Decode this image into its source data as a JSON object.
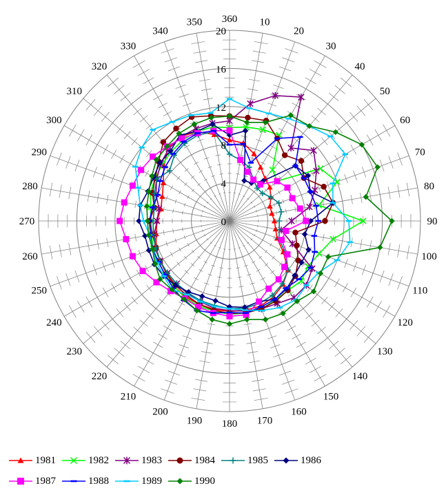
{
  "chart_data": {
    "type": "radar",
    "theta_ticks": [
      0,
      10,
      20,
      30,
      40,
      50,
      60,
      70,
      80,
      90,
      100,
      110,
      120,
      130,
      140,
      150,
      160,
      170,
      180,
      190,
      200,
      210,
      220,
      230,
      240,
      250,
      260,
      270,
      280,
      290,
      300,
      310,
      320,
      330,
      340,
      350
    ],
    "theta_labels": [
      "360",
      "10",
      "20",
      "30",
      "40",
      "50",
      "60",
      "70",
      "80",
      "90",
      "100",
      "110",
      "120",
      "130",
      "140",
      "150",
      "160",
      "170",
      "180",
      "190",
      "200",
      "210",
      "220",
      "230",
      "240",
      "250",
      "260",
      "270",
      "280",
      "290",
      "300",
      "310",
      "320",
      "330",
      "340",
      "350"
    ],
    "r_ticks": [
      0,
      4,
      8,
      12,
      16,
      20
    ],
    "r_labels": [
      "0",
      "4",
      "8",
      "12",
      "16",
      "20"
    ],
    "rlim": [
      0,
      20
    ],
    "grid": true,
    "legend_position": "bottom",
    "series": [
      {
        "name": "1981",
        "color": "#ff0000",
        "marker": "triangle",
        "values": [
          8.5,
          8.3,
          7.5,
          6.5,
          5.8,
          5.5,
          5.0,
          4.5,
          4.5,
          4.7,
          4.9,
          5.3,
          6.5,
          8.0,
          8.7,
          9.2,
          9.5,
          9.5,
          9.5,
          9.4,
          9.3,
          9.2,
          9.0,
          8.6,
          8.4,
          8.2,
          7.8,
          7.6,
          7.3,
          7.5,
          8.0,
          9.0,
          10.0,
          10.2,
          10.0,
          9.2
        ]
      },
      {
        "name": "1982",
        "color": "#00ff00",
        "marker": "x",
        "values": [
          9.8,
          10.0,
          10.2,
          10.4,
          7.0,
          6.5,
          11.0,
          12.0,
          9.5,
          14.0,
          11.0,
          10.0,
          9.5,
          9.8,
          9.5,
          9.6,
          9.8,
          9.8,
          9.8,
          9.6,
          9.5,
          9.3,
          9.0,
          8.8,
          8.6,
          8.5,
          8.3,
          8.2,
          8.4,
          8.8,
          9.0,
          9.2,
          9.5,
          9.8,
          10.0,
          10.0
        ]
      },
      {
        "name": "1983",
        "color": "#800080",
        "marker": "asterisk",
        "values": [
          10.5,
          12.5,
          14.0,
          15.0,
          10.0,
          11.5,
          10.5,
          9.5,
          8.5,
          6.5,
          5.5,
          7.0,
          10.0,
          10.5,
          10.5,
          10.0,
          9.8,
          9.6,
          9.4,
          9.3,
          9.0,
          8.8,
          8.6,
          8.5,
          8.4,
          8.3,
          8.0,
          7.6,
          7.5,
          8.2,
          8.8,
          9.4,
          9.9,
          10.2,
          10.3,
          10.4
        ]
      },
      {
        "name": "1984",
        "color": "#800000",
        "marker": "circle",
        "values": [
          11.0,
          11.0,
          11.2,
          10.0,
          9.0,
          9.8,
          9.0,
          10.5,
          11.0,
          10.0,
          7.0,
          7.5,
          8.3,
          9.0,
          9.5,
          9.7,
          9.8,
          9.8,
          9.7,
          9.5,
          9.3,
          9.0,
          8.8,
          8.6,
          8.4,
          8.2,
          8.2,
          8.4,
          8.0,
          8.6,
          9.0,
          9.7,
          10.8,
          11.2,
          11.6,
          11.2
        ]
      },
      {
        "name": "1985",
        "color": "#008080",
        "marker": "plus",
        "values": [
          7.0,
          6.5,
          6.0,
          5.0,
          4.5,
          4.5,
          5.0,
          5.5,
          5.5,
          5.2,
          5.3,
          5.5,
          6.8,
          8.0,
          8.6,
          9.0,
          9.2,
          9.3,
          9.2,
          9.0,
          8.9,
          8.7,
          8.6,
          8.5,
          8.4,
          8.2,
          8.1,
          8.0,
          8.0,
          8.4,
          8.8,
          8.2,
          9.0,
          9.4,
          9.6,
          9.5
        ]
      },
      {
        "name": "1986",
        "color": "#000080",
        "marker": "diamond",
        "values": [
          9.0,
          9.6,
          4.5,
          4.6,
          5.5,
          9.0,
          9.5,
          9.0,
          11.0,
          8.5,
          8.0,
          8.8,
          8.7,
          8.9,
          9.3,
          9.5,
          9.0,
          9.2,
          9.0,
          8.5,
          8.4,
          8.6,
          8.8,
          9.0,
          9.1,
          9.0,
          9.0,
          9.5,
          9.5,
          9.1,
          9.2,
          9.5,
          9.6,
          10.4,
          10.0,
          10.3
        ]
      },
      {
        "name": "1987",
        "color": "#ff00ff",
        "marker": "square",
        "values": [
          9.5,
          6.5,
          5.5,
          5.0,
          5.0,
          6.5,
          7.0,
          7.0,
          7.5,
          8.0,
          6.0,
          5.8,
          7.0,
          7.5,
          8.0,
          8.2,
          9.0,
          10.0,
          10.0,
          9.8,
          9.6,
          9.4,
          9.6,
          10.0,
          10.5,
          10.8,
          11.0,
          11.5,
          11.2,
          10.8,
          10.7,
          10.5,
          10.2,
          10.0,
          9.8,
          9.6
        ]
      },
      {
        "name": "1988",
        "color": "#0000ff",
        "marker": "bar",
        "values": [
          8.0,
          8.2,
          6.5,
          10.0,
          11.5,
          9.0,
          9.0,
          9.0,
          9.2,
          9.3,
          9.0,
          9.5,
          9.8,
          9.5,
          9.2,
          9.5,
          9.6,
          9.8,
          9.6,
          9.8,
          10.0,
          9.6,
          9.2,
          8.8,
          8.6,
          8.6,
          8.4,
          8.4,
          8.2,
          8.0,
          8.4,
          8.8,
          9.2,
          9.6,
          9.8,
          9.6
        ]
      },
      {
        "name": "1989",
        "color": "#00ccff",
        "marker": "bar",
        "values": [
          12.8,
          12.0,
          12.0,
          12.4,
          13.0,
          13.8,
          14.0,
          11.5,
          11.0,
          12.5,
          12.8,
          12.0,
          10.8,
          10.5,
          10.8,
          10.5,
          10.0,
          9.5,
          9.2,
          9.1,
          9.0,
          8.9,
          9.4,
          9.0,
          8.8,
          8.6,
          8.5,
          9.0,
          9.5,
          10.2,
          11.4,
          12.0,
          12.5,
          12.0,
          11.8,
          11.5
        ]
      },
      {
        "name": "1990",
        "color": "#008000",
        "marker": "diamond",
        "values": [
          11.0,
          10.5,
          11.0,
          12.8,
          13.0,
          14.5,
          16.0,
          16.5,
          14.5,
          17.0,
          16.0,
          11.0,
          11.0,
          11.5,
          11.0,
          11.2,
          11.0,
          10.5,
          10.8,
          10.5,
          10.0,
          9.5,
          9.4,
          9.5,
          9.0,
          8.6,
          8.6,
          8.6,
          8.8,
          9.0,
          9.4,
          10.0,
          10.2,
          10.6,
          10.8,
          11.0
        ]
      }
    ]
  }
}
